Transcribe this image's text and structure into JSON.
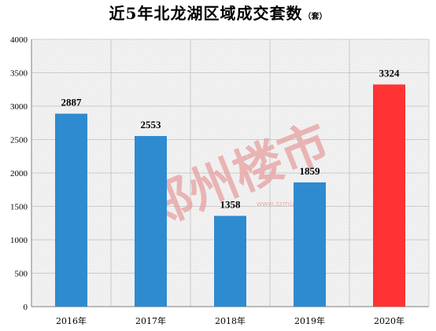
{
  "chart_data": {
    "type": "bar",
    "title": "近5年北龙湖区域成交套数",
    "unit": "（套）",
    "categories": [
      "2016年",
      "2017年",
      "2018年",
      "2019年",
      "2020年"
    ],
    "values": [
      2887,
      2553,
      1358,
      1859,
      3324
    ],
    "value_labels": [
      "2887",
      "2553",
      "1358",
      "1859",
      "3324"
    ],
    "ylim": [
      0,
      4000
    ],
    "yticks": [
      "0",
      "500",
      "1000",
      "1500",
      "2000",
      "2500",
      "3000",
      "3500",
      "4000"
    ],
    "grid": true,
    "legend": "none",
    "xlabel": "",
    "ylabel": "",
    "colors": {
      "default_bar": "#2E8BD0",
      "highlight_bar": "#FF3333",
      "highlight_index": 4,
      "grid": "#BFBFBF",
      "axis": "#7F7F7F",
      "plot_background": "#F2F2F2"
    },
    "watermark": {
      "text": "郑州楼市",
      "subtext": "www.zzmizhan.com",
      "color": "#E8A0A0"
    }
  }
}
